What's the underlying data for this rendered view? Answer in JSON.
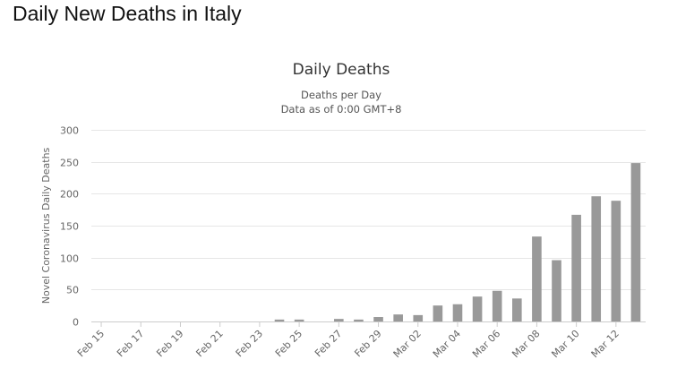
{
  "page": {
    "heading": "Daily New Deaths in Italy"
  },
  "colors": {
    "bar": "#999999",
    "grid": "#e6e6e6",
    "axis": "#cccccc"
  },
  "chart_data": {
    "type": "bar",
    "title": "Daily Deaths",
    "subtitle_lines": [
      "Deaths per Day",
      "Data as of 0:00 GMT+8"
    ],
    "ylabel": "Novel Coronavirus Daily Deaths",
    "xlabel": "",
    "ylim": [
      0,
      300
    ],
    "yticks": [
      0,
      50,
      100,
      150,
      200,
      250,
      300
    ],
    "grid": true,
    "legend": "none",
    "categories": [
      "Feb 15",
      "Feb 16",
      "Feb 17",
      "Feb 18",
      "Feb 19",
      "Feb 20",
      "Feb 21",
      "Feb 22",
      "Feb 23",
      "Feb 24",
      "Feb 25",
      "Feb 26",
      "Feb 27",
      "Feb 28",
      "Feb 29",
      "Mar 01",
      "Mar 02",
      "Mar 03",
      "Mar 04",
      "Mar 05",
      "Mar 06",
      "Mar 07",
      "Mar 08",
      "Mar 09",
      "Mar 10",
      "Mar 11",
      "Mar 12",
      "Mar 13"
    ],
    "xtick_labels": [
      "Feb 15",
      "Feb 17",
      "Feb 19",
      "Feb 21",
      "Feb 23",
      "Feb 25",
      "Feb 27",
      "Feb 29",
      "Mar 02",
      "Mar 04",
      "Mar 06",
      "Mar 08",
      "Mar 10",
      "Mar 12"
    ],
    "values": [
      0,
      0,
      0,
      0,
      0,
      0,
      0,
      0,
      0,
      3,
      3,
      0,
      4,
      3,
      7,
      11,
      10,
      25,
      27,
      39,
      48,
      36,
      133,
      96,
      167,
      196,
      189,
      248
    ]
  }
}
